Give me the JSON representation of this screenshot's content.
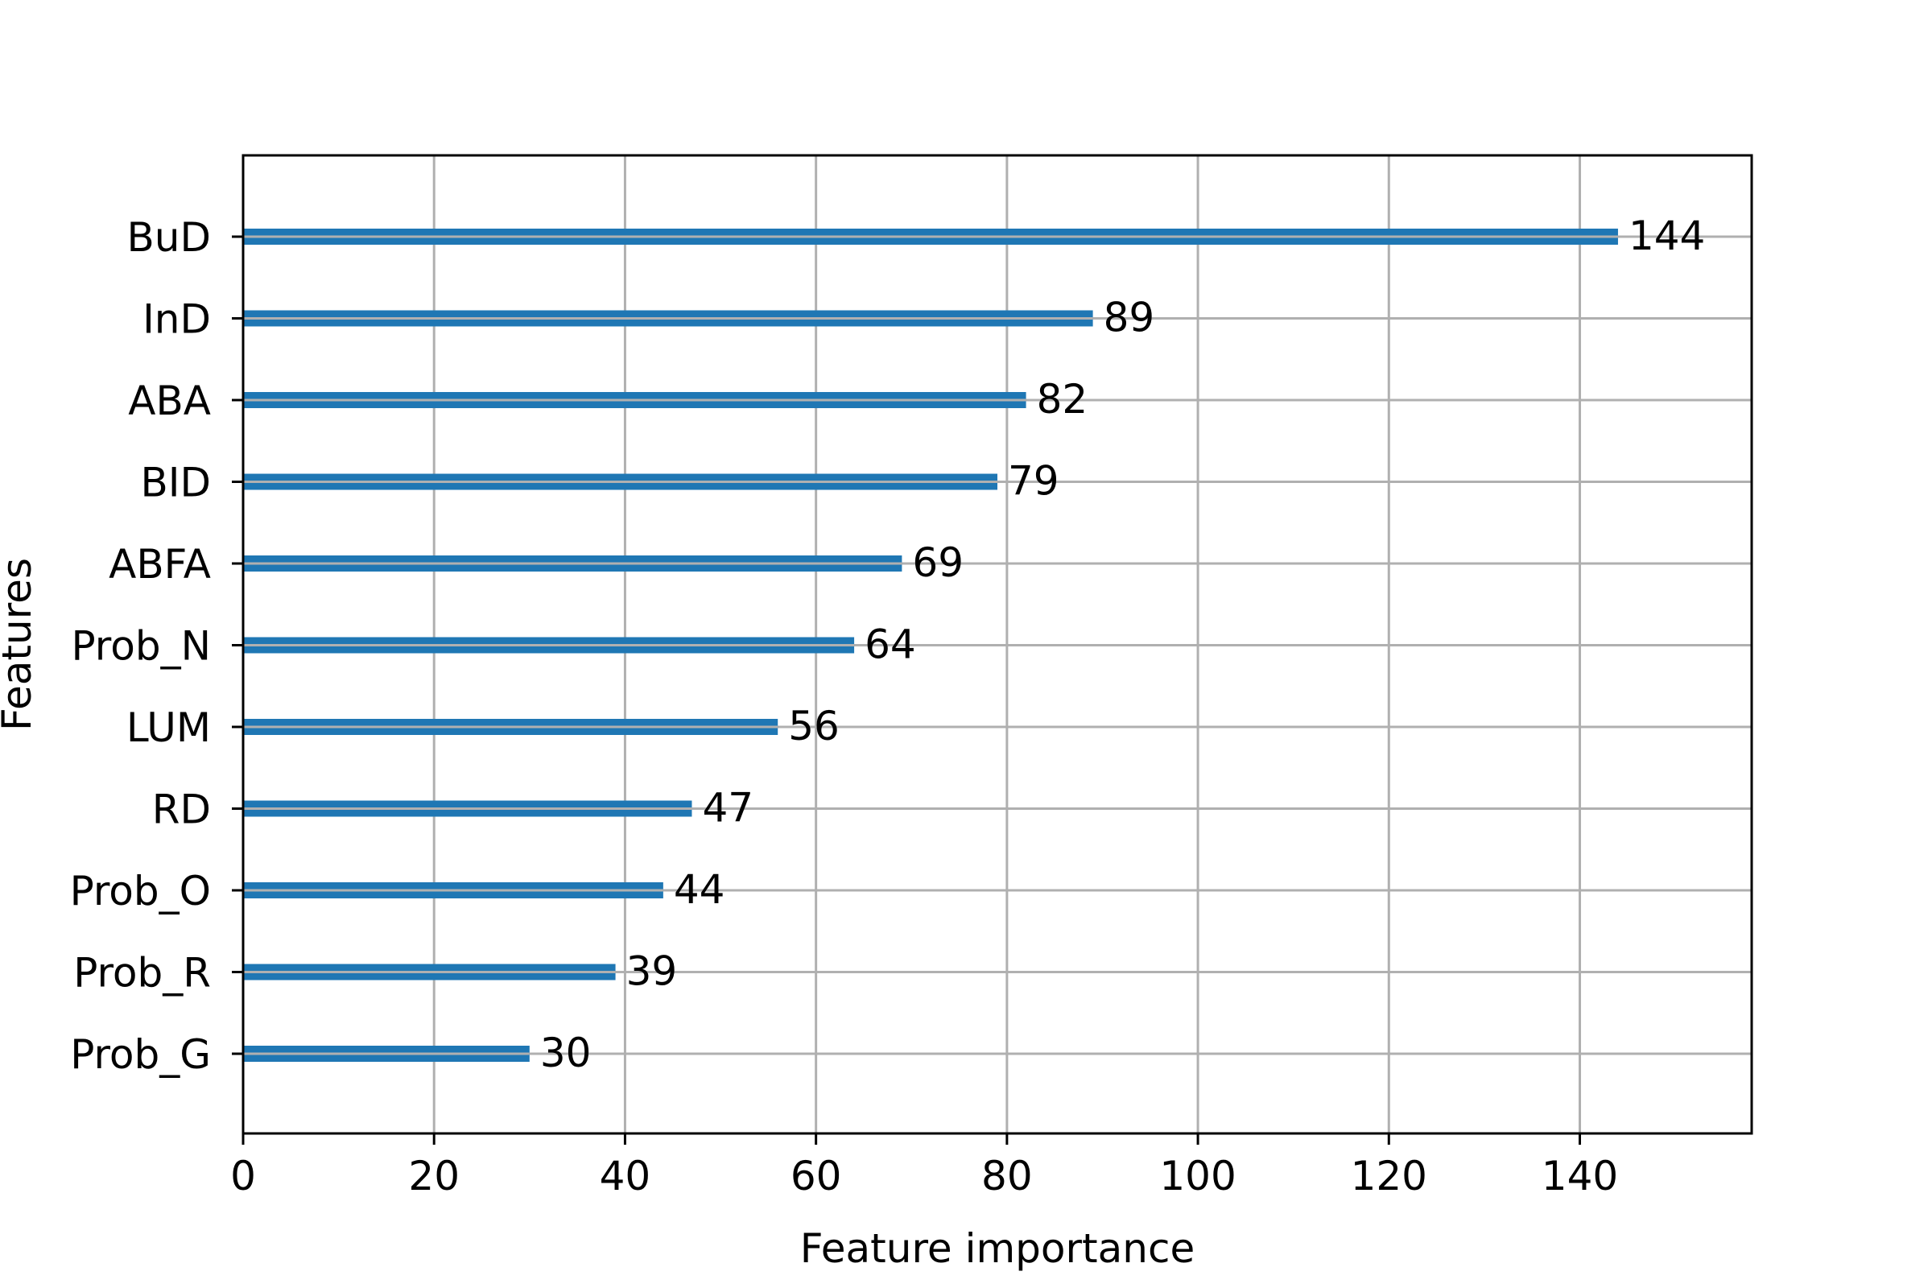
{
  "chart_data": {
    "type": "bar",
    "orientation": "horizontal",
    "categories": [
      "BuD",
      "InD",
      "ABA",
      "BID",
      "ABFA",
      "Prob_N",
      "LUM",
      "RD",
      "Prob_O",
      "Prob_R",
      "Prob_G"
    ],
    "values": [
      144,
      89,
      82,
      79,
      69,
      64,
      56,
      47,
      44,
      39,
      30
    ],
    "data_labels": [
      "144",
      "89",
      "82",
      "79",
      "69",
      "64",
      "56",
      "47",
      "44",
      "39",
      "30"
    ],
    "xlabel": "Feature importance",
    "ylabel": "Features",
    "xlim": [
      0,
      158
    ],
    "xticks": [
      0,
      20,
      40,
      60,
      80,
      100,
      120,
      140
    ],
    "xtick_labels": [
      "0",
      "20",
      "40",
      "60",
      "80",
      "100",
      "120",
      "140"
    ],
    "grid": true,
    "bar_color": "#1f77b4",
    "grid_color": "#b0b0b0"
  }
}
